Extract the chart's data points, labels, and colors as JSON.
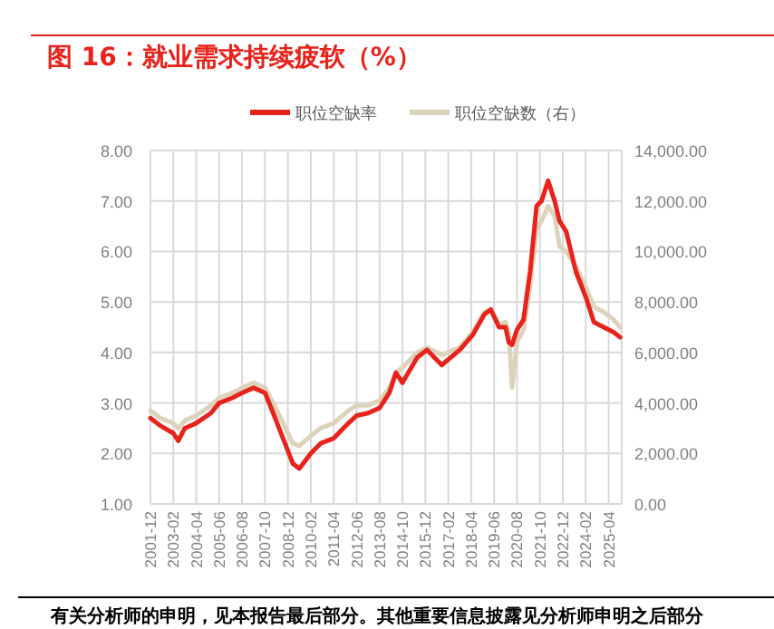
{
  "chart_data": {
    "type": "line",
    "title": "图 16：就业需求持续疲软（%）",
    "x": [
      "2001-12",
      "2002-06",
      "2003-02",
      "2003-05",
      "2003-09",
      "2004-04",
      "2005-01",
      "2005-06",
      "2006-02",
      "2006-08",
      "2007-03",
      "2007-10",
      "2008-03",
      "2008-09",
      "2009-03",
      "2009-07",
      "2010-02",
      "2010-08",
      "2011-04",
      "2012-01",
      "2012-06",
      "2013-01",
      "2013-08",
      "2014-02",
      "2014-06",
      "2014-10",
      "2015-07",
      "2016-01",
      "2016-10",
      "2017-09",
      "2018-05",
      "2018-12",
      "2019-04",
      "2019-09",
      "2020-01",
      "2020-03",
      "2020-05",
      "2020-08",
      "2020-12",
      "2021-04",
      "2021-08",
      "2021-11",
      "2022-03",
      "2022-07",
      "2022-10",
      "2023-02",
      "2023-08",
      "2024-02",
      "2024-07",
      "2025-01",
      "2025-07",
      "2025-11"
    ],
    "series": [
      {
        "name": "职位空缺率",
        "color": "#e8231c",
        "values": [
          2.7,
          2.55,
          2.4,
          2.25,
          2.5,
          2.6,
          2.8,
          3.0,
          3.1,
          3.2,
          3.3,
          3.2,
          2.8,
          2.3,
          1.8,
          1.7,
          2.0,
          2.2,
          2.3,
          2.6,
          2.75,
          2.8,
          2.9,
          3.2,
          3.6,
          3.4,
          3.9,
          4.05,
          3.75,
          4.05,
          4.35,
          4.75,
          4.85,
          4.5,
          4.5,
          4.2,
          4.15,
          4.45,
          4.65,
          5.6,
          6.9,
          7.0,
          7.4,
          7.0,
          6.6,
          6.4,
          5.6,
          5.1,
          4.6,
          4.5,
          4.4,
          4.3
        ]
      },
      {
        "name": "职位空缺数（右）",
        "color": "#ddd3bb",
        "axis": "y2",
        "values": [
          3700,
          3400,
          3200,
          3000,
          3300,
          3500,
          3900,
          4200,
          4400,
          4600,
          4800,
          4600,
          4000,
          3200,
          2400,
          2300,
          2700,
          3000,
          3200,
          3700,
          3900,
          3900,
          4100,
          4600,
          5200,
          5400,
          6000,
          6200,
          5900,
          6200,
          6800,
          7600,
          7700,
          7100,
          7200,
          6800,
          4600,
          6400,
          6900,
          8600,
          10900,
          11200,
          11800,
          11400,
          10200,
          10000,
          9400,
          8600,
          7800,
          7600,
          7300,
          7000
        ]
      }
    ],
    "xlim": [
      "2001-12",
      "2025-12"
    ],
    "xticks": [
      "2001-12",
      "2003-02",
      "2004-04",
      "2005-06",
      "2006-08",
      "2007-10",
      "2008-12",
      "2010-02",
      "2011-04",
      "2012-06",
      "2013-08",
      "2014-10",
      "2015-12",
      "2017-02",
      "2018-04",
      "2019-06",
      "2020-08",
      "2021-10",
      "2022-12",
      "2024-02",
      "2025-04"
    ],
    "ylim": [
      1,
      8
    ],
    "yticks": [
      {
        "value": 1,
        "label": "1.00"
      },
      {
        "value": 2,
        "label": "2.00"
      },
      {
        "value": 3,
        "label": "3.00"
      },
      {
        "value": 4,
        "label": "4.00"
      },
      {
        "value": 5,
        "label": "5.00"
      },
      {
        "value": 6,
        "label": "6.00"
      },
      {
        "value": 7,
        "label": "7.00"
      },
      {
        "value": 8,
        "label": "8.00"
      }
    ],
    "y2lim": [
      0,
      14000
    ],
    "y2ticks": [
      {
        "value": 0,
        "label": "0.00"
      },
      {
        "value": 2000,
        "label": "2,000.00"
      },
      {
        "value": 4000,
        "label": "4,000.00"
      },
      {
        "value": 6000,
        "label": "6,000.00"
      },
      {
        "value": 8000,
        "label": "8,000.00"
      },
      {
        "value": 10000,
        "label": "10,000.00"
      },
      {
        "value": 12000,
        "label": "12,000.00"
      },
      {
        "value": 14000,
        "label": "14,000.00"
      }
    ],
    "grid": true,
    "legend": "top",
    "annotations": [
      "有关分析师的申明，见本报告最后部分。其他重要信息披露见分析师申明之后部分"
    ]
  }
}
